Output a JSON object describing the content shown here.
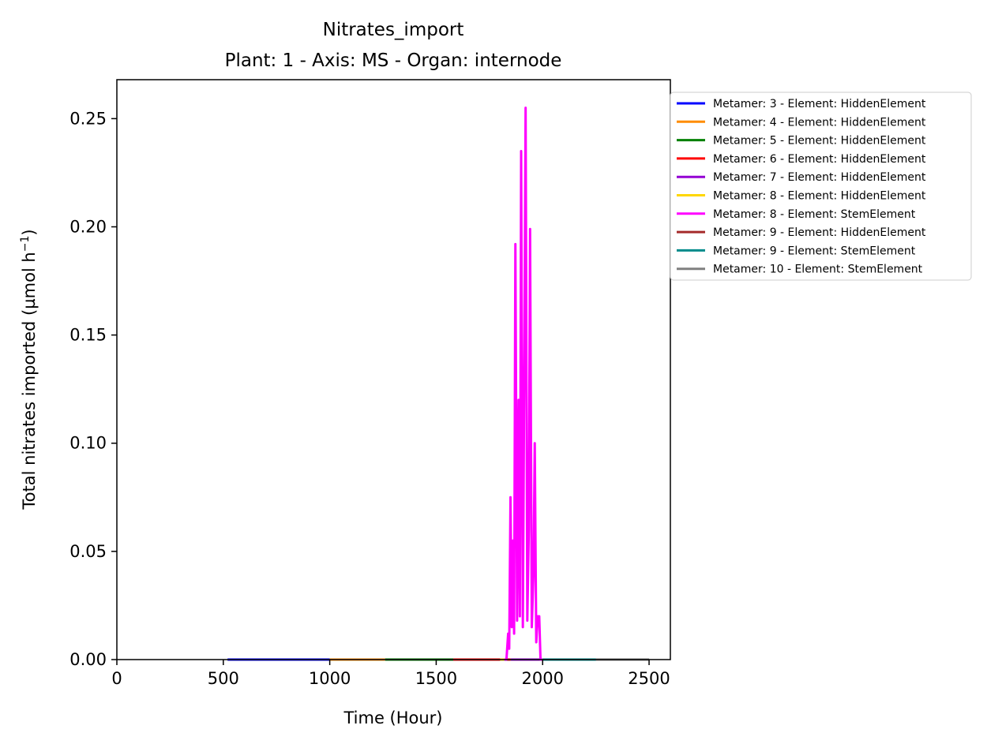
{
  "chart_data": {
    "type": "line",
    "title_line1": "Nitrates_import",
    "title_line2": "Plant: 1 - Axis: MS - Organ: internode",
    "xlabel": "Time (Hour)",
    "ylabel": "Total nitrates imported (µmol h",
    "ylabel_sup": "−1",
    "ylabel_close": ")",
    "xlim": [
      0,
      2600
    ],
    "ylim": [
      0,
      0.268
    ],
    "xticks": [
      0,
      500,
      1000,
      1500,
      2000,
      2500
    ],
    "xtick_labels": [
      "0",
      "500",
      "1000",
      "1500",
      "2000",
      "2500"
    ],
    "yticks": [
      0,
      0.05,
      0.1,
      0.15,
      0.2,
      0.25
    ],
    "ytick_labels": [
      "0.00",
      "0.05",
      "0.10",
      "0.15",
      "0.20",
      "0.25"
    ],
    "legend_position": "outside-right-top",
    "series": [
      {
        "name": "Metamer: 3 - Element: HiddenElement",
        "color": "#0000ff",
        "points": [
          [
            520,
            0
          ],
          [
            1000,
            0
          ]
        ]
      },
      {
        "name": "Metamer: 4 - Element: HiddenElement",
        "color": "#ff8c00",
        "points": [
          [
            1000,
            0
          ],
          [
            1260,
            0
          ]
        ]
      },
      {
        "name": "Metamer: 5 - Element: HiddenElement",
        "color": "#008000",
        "points": [
          [
            1260,
            0
          ],
          [
            1580,
            0
          ]
        ]
      },
      {
        "name": "Metamer: 6 - Element: HiddenElement",
        "color": "#ff0000",
        "points": [
          [
            1580,
            0
          ],
          [
            1850,
            0
          ]
        ]
      },
      {
        "name": "Metamer: 7 - Element: HiddenElement",
        "color": "#9400d3",
        "points": [
          [
            1850,
            0
          ],
          [
            2000,
            0
          ]
        ]
      },
      {
        "name": "Metamer: 8 - Element: HiddenElement",
        "color": "#ffd700",
        "points": [
          [
            1800,
            0
          ],
          [
            1830,
            0
          ]
        ]
      },
      {
        "name": "Metamer: 8 - Element: StemElement",
        "color": "#ff00ff",
        "points": [
          [
            1820,
            0
          ],
          [
            1830,
            0
          ],
          [
            1838,
            0.012
          ],
          [
            1843,
            0.005
          ],
          [
            1849,
            0.075
          ],
          [
            1855,
            0.015
          ],
          [
            1861,
            0.055
          ],
          [
            1866,
            0.012
          ],
          [
            1872,
            0.192
          ],
          [
            1880,
            0.018
          ],
          [
            1887,
            0.12
          ],
          [
            1893,
            0.02
          ],
          [
            1899,
            0.235
          ],
          [
            1907,
            0.015
          ],
          [
            1913,
            0.12
          ],
          [
            1920,
            0.255
          ],
          [
            1928,
            0.018
          ],
          [
            1935,
            0.06
          ],
          [
            1941,
            0.199
          ],
          [
            1949,
            0.015
          ],
          [
            1957,
            0.04
          ],
          [
            1963,
            0.1
          ],
          [
            1970,
            0.008
          ],
          [
            1977,
            0.02
          ],
          [
            1984,
            0.02
          ],
          [
            1990,
            0
          ],
          [
            2000,
            0
          ]
        ]
      },
      {
        "name": "Metamer: 9 - Element: HiddenElement",
        "color": "#a52a2a",
        "points": [
          [
            2000,
            0
          ],
          [
            2250,
            0
          ]
        ]
      },
      {
        "name": "Metamer: 9 - Element: StemElement",
        "color": "#008b8b",
        "points": [
          [
            2000,
            0
          ],
          [
            2500,
            0
          ]
        ]
      },
      {
        "name": "Metamer: 10 - Element: StemElement",
        "color": "#808080",
        "points": [
          [
            2250,
            0
          ],
          [
            2500,
            0
          ]
        ]
      }
    ]
  }
}
